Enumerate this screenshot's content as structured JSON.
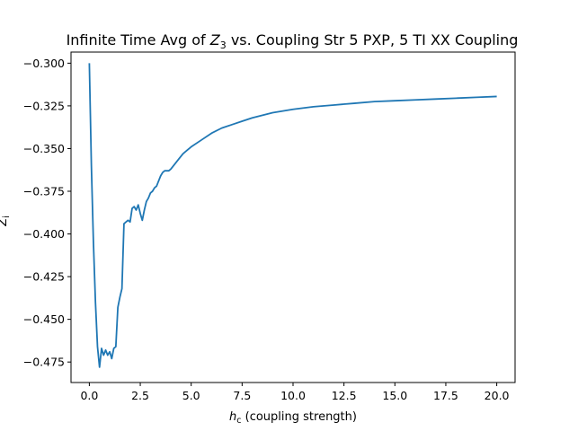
{
  "chart_data": {
    "type": "line",
    "title_parts": {
      "before": "Infinite Time Avg of ",
      "italic": "Z",
      "subscript": "3",
      "after": " vs. Coupling Str 5 PXP, 5 TI XX Coupling"
    },
    "xlabel_parts": {
      "italic": "h",
      "subscript": "c",
      "after": " (coupling strength)"
    },
    "ylabel_parts": {
      "italic": "Z",
      "subscript": "i"
    },
    "xlim": [
      -0.9,
      20.9
    ],
    "ylim": [
      -0.487,
      -0.2935
    ],
    "xticks": [
      {
        "value": 0.0,
        "label": "0.0"
      },
      {
        "value": 2.5,
        "label": "2.5"
      },
      {
        "value": 5.0,
        "label": "5.0"
      },
      {
        "value": 7.5,
        "label": "7.5"
      },
      {
        "value": 10.0,
        "label": "10.0"
      },
      {
        "value": 12.5,
        "label": "12.5"
      },
      {
        "value": 15.0,
        "label": "15.0"
      },
      {
        "value": 17.5,
        "label": "17.5"
      },
      {
        "value": 20.0,
        "label": "20.0"
      }
    ],
    "yticks": [
      {
        "value": -0.3,
        "label": "−0.300"
      },
      {
        "value": -0.325,
        "label": "−0.325"
      },
      {
        "value": -0.35,
        "label": "−0.350"
      },
      {
        "value": -0.375,
        "label": "−0.375"
      },
      {
        "value": -0.4,
        "label": "−0.400"
      },
      {
        "value": -0.425,
        "label": "−0.425"
      },
      {
        "value": -0.45,
        "label": "−0.450"
      },
      {
        "value": -0.475,
        "label": "−0.475"
      }
    ],
    "grid": false,
    "series": [
      {
        "color": "#1f77b4",
        "x": [
          0.0,
          0.1,
          0.2,
          0.3,
          0.4,
          0.5,
          0.6,
          0.7,
          0.8,
          0.9,
          1.0,
          1.1,
          1.2,
          1.3,
          1.4,
          1.5,
          1.6,
          1.7,
          1.8,
          1.9,
          2.0,
          2.1,
          2.2,
          2.3,
          2.4,
          2.5,
          2.6,
          2.7,
          2.8,
          2.9,
          3.0,
          3.1,
          3.2,
          3.3,
          3.4,
          3.5,
          3.6,
          3.7,
          3.8,
          3.9,
          4.0,
          4.2,
          4.4,
          4.6,
          4.8,
          5.0,
          5.5,
          6.0,
          6.5,
          7.0,
          7.5,
          8.0,
          9.0,
          10.0,
          11.0,
          12.0,
          13.0,
          14.0,
          15.0,
          16.0,
          17.0,
          18.0,
          19.0,
          20.0
        ],
        "y": [
          -0.3,
          -0.36,
          -0.405,
          -0.44,
          -0.466,
          -0.478,
          -0.467,
          -0.471,
          -0.468,
          -0.471,
          -0.469,
          -0.473,
          -0.467,
          -0.466,
          -0.443,
          -0.437,
          -0.432,
          -0.394,
          -0.393,
          -0.392,
          -0.393,
          -0.385,
          -0.384,
          -0.386,
          -0.383,
          -0.388,
          -0.392,
          -0.386,
          -0.381,
          -0.379,
          -0.376,
          -0.375,
          -0.373,
          -0.372,
          -0.369,
          -0.366,
          -0.364,
          -0.363,
          -0.363,
          -0.363,
          -0.362,
          -0.359,
          -0.356,
          -0.353,
          -0.351,
          -0.349,
          -0.345,
          -0.341,
          -0.338,
          -0.336,
          -0.334,
          -0.332,
          -0.329,
          -0.327,
          -0.3255,
          -0.3245,
          -0.3235,
          -0.3225,
          -0.322,
          -0.3215,
          -0.321,
          -0.3205,
          -0.32,
          -0.3195
        ]
      }
    ]
  }
}
